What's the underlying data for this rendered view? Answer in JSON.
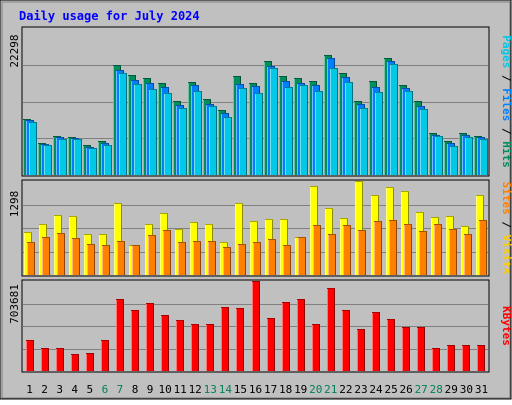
{
  "chart_data": {
    "type": "bar",
    "title": "Daily usage for July 2024",
    "categories": [
      "1",
      "2",
      "3",
      "4",
      "5",
      "6",
      "7",
      "8",
      "9",
      "10",
      "11",
      "12",
      "13",
      "14",
      "15",
      "16",
      "17",
      "18",
      "19",
      "20",
      "21",
      "22",
      "23",
      "24",
      "25",
      "26",
      "27",
      "28",
      "29",
      "30",
      "31"
    ],
    "weekend_days": [
      "6",
      "7",
      "13",
      "14",
      "20",
      "21",
      "27",
      "28"
    ],
    "panels": [
      {
        "id": "top",
        "max_label": "22298",
        "ylim": [
          0,
          22298
        ],
        "axis_label_parts": [
          {
            "text": "Pages",
            "color": "#00c8e6"
          },
          {
            "text": " / ",
            "color": "#000000"
          },
          {
            "text": "Files",
            "color": "#0080ff"
          },
          {
            "text": " / ",
            "color": "#000000"
          },
          {
            "text": "Hits",
            "color": "#008f5a"
          }
        ],
        "series": [
          {
            "name": "Hits",
            "color": "#008f5a",
            "values": [
              8500,
              4800,
              5900,
              5700,
              4500,
              5100,
              16700,
              15200,
              14700,
              13900,
              11300,
              14100,
              11500,
              9900,
              15000,
              14000,
              17300,
              15000,
              14700,
              14200,
              18200,
              15500,
              11300,
              14200,
              17700,
              13700,
              11300,
              6300,
              5100,
              6300,
              5900
            ]
          },
          {
            "name": "Files",
            "color": "#0080ff",
            "values": [
              8300,
              4700,
              5700,
              5600,
              4300,
              4900,
              16000,
              14400,
              14000,
              13300,
              10600,
              13600,
              10800,
              9400,
              13800,
              13500,
              16600,
              14200,
              14000,
              13700,
              17700,
              14800,
              10700,
              13400,
              17300,
              13200,
              10500,
              6100,
              4800,
              6000,
              5700
            ]
          },
          {
            "name": "Pages",
            "color": "#00c8e6",
            "values": [
              8000,
              4600,
              5400,
              5400,
              4100,
              4600,
              15400,
              13800,
              13000,
              12500,
              10200,
              12800,
              10400,
              8800,
              13200,
              12500,
              16300,
              13300,
              13600,
              12800,
              16200,
              14100,
              10100,
              12600,
              16900,
              12800,
              10000,
              5900,
              4400,
              5800,
              5400
            ]
          }
        ]
      },
      {
        "id": "middle",
        "max_label": "1298",
        "ylim": [
          0,
          1298
        ],
        "axis_label_parts": [
          {
            "text": "Sites",
            "color": "#ff8000"
          },
          {
            "text": " / ",
            "color": "#000000"
          },
          {
            "text": "Visits",
            "color": "#ffcc00"
          }
        ],
        "series": [
          {
            "name": "Visits",
            "color": "#ffff00",
            "values": [
              600,
              710,
              830,
              810,
              560,
              570,
              990,
              410,
              700,
              850,
              630,
              730,
              700,
              460,
              1000,
              750,
              780,
              780,
              520,
              1230,
              930,
              790,
              1300,
              1110,
              1220,
              1160,
              870,
              800,
              820,
              670,
              1100
            ]
          },
          {
            "name": "Sites",
            "color": "#ff8000",
            "values": [
              460,
              520,
              580,
              510,
              430,
              420,
              470,
              420,
              550,
              620,
              450,
              470,
              470,
              380,
              430,
              460,
              500,
              420,
              530,
              690,
              560,
              690,
              620,
              750,
              760,
              700,
              610,
              700,
              640,
              570,
              760
            ]
          }
        ]
      },
      {
        "id": "bottom",
        "max_label": "703681",
        "ylim": [
          0,
          703681
        ],
        "axis_label_parts": [
          {
            "text": "KBytes",
            "color": "#ff0000"
          }
        ],
        "series": [
          {
            "name": "KBytes",
            "color": "#ff0000",
            "values": [
              240000,
              176000,
              176000,
              130000,
              142000,
              240000,
              560000,
              480000,
              530000,
              440000,
              395000,
              369000,
              369000,
              500000,
              495000,
              703681,
              415000,
              540000,
              560000,
              370000,
              650000,
              480000,
              330000,
              465000,
              405000,
              345000,
              345000,
              180000,
              200000,
              200000,
              200000
            ]
          }
        ]
      }
    ]
  }
}
